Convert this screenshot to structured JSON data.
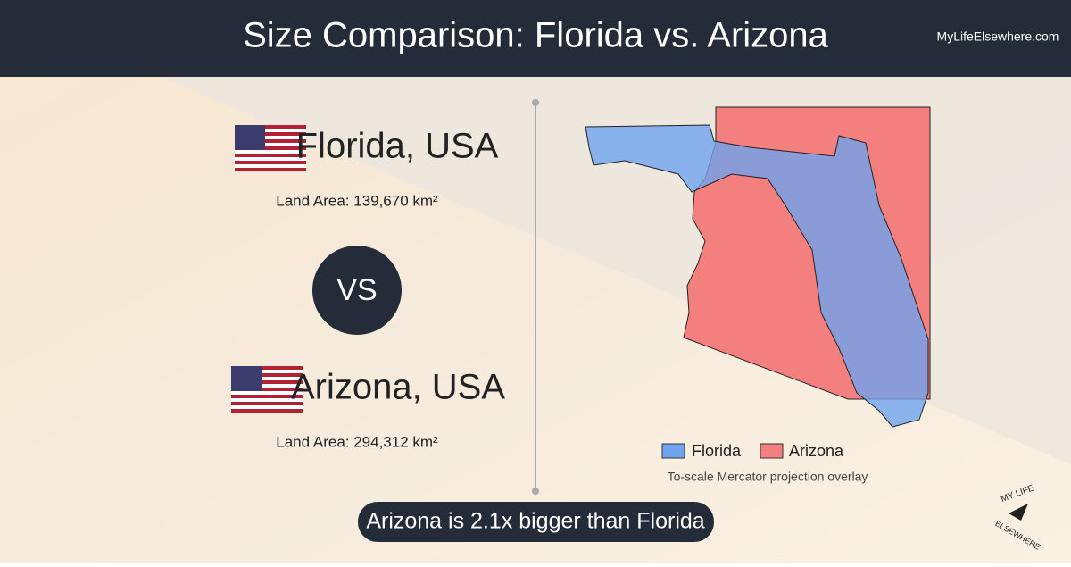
{
  "header": {
    "title": "Size Comparison: Florida vs. Arizona",
    "site": "MyLifeElsewhere.com"
  },
  "places": [
    {
      "name": "Florida, USA",
      "area": "Land Area: 139,670 km²"
    },
    {
      "name": "Arizona, USA",
      "area": "Land Area: 294,312 km²"
    }
  ],
  "versus": "VS",
  "legend": [
    "Florida",
    "Arizona"
  ],
  "note": "To-scale Mercator projection overlay",
  "summary": "Arizona is 2.1x bigger than Florida",
  "logo": [
    "MY LIFE",
    "ELSEWHERE"
  ]
}
